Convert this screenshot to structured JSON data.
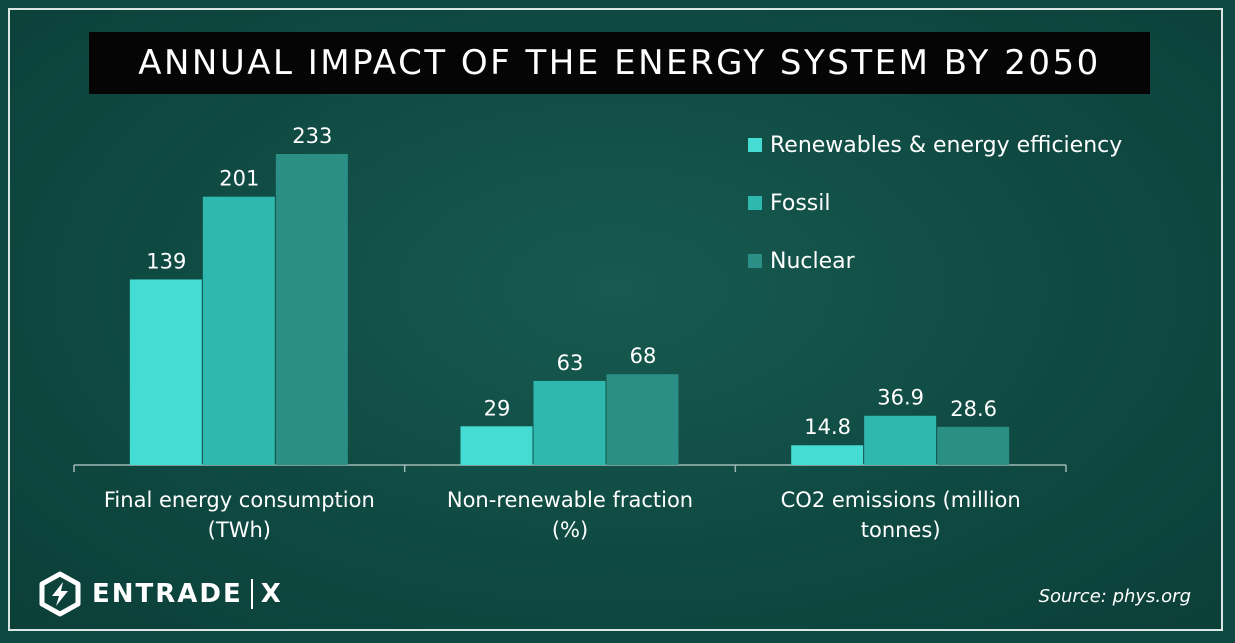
{
  "header": {
    "title": "ANNUAL IMPACT OF THE ENERGY SYSTEM BY 2050"
  },
  "chart_data": {
    "type": "bar",
    "title": "ANNUAL IMPACT OF THE ENERGY SYSTEM BY 2050",
    "categories": [
      [
        "Final energy consumption",
        "(TWh)"
      ],
      [
        "Non-renewable fraction",
        "(%)"
      ],
      [
        "CO2 emissions (million",
        "tonnes)"
      ]
    ],
    "series": [
      {
        "name": "Renewables & energy efficiency",
        "color": "#44dcd3",
        "labels": [
          "139",
          "29",
          "14.8"
        ]
      },
      {
        "name": "Fossil",
        "color": "#2fb8ae",
        "labels": [
          "201",
          "63",
          "36.9"
        ]
      },
      {
        "name": "Nuclear",
        "color": "#2c8f86",
        "labels": [
          "233",
          "68",
          "28.6"
        ]
      }
    ],
    "scale_reference": "233",
    "legend_position": "top-right",
    "grid": false
  },
  "brand": {
    "name": "ENTRADE",
    "suffix": "X",
    "icon": "lightning-hexagon-icon"
  },
  "source": "Source: phys.org"
}
